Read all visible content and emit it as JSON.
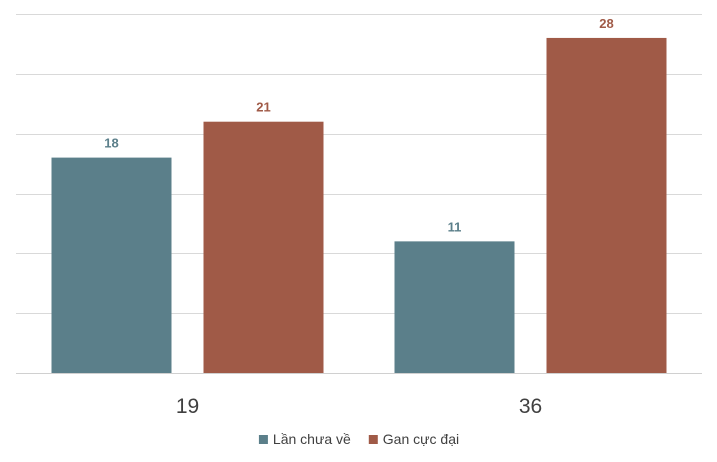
{
  "chart_data": {
    "type": "bar",
    "categories": [
      "19",
      "36"
    ],
    "series": [
      {
        "name": "Lần chưa về",
        "values": [
          18,
          11
        ],
        "color": "#5b7f8a"
      },
      {
        "name": "Gan cực đại",
        "values": [
          21,
          28
        ],
        "color": "#a05a47"
      }
    ],
    "ylim": [
      0,
      30
    ],
    "grid": true,
    "y_tick_labels_shown": false,
    "legend": "bottom",
    "data_labels": true
  }
}
